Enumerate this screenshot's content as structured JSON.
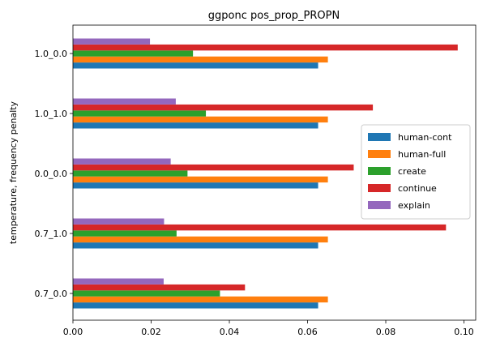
{
  "chart_data": {
    "type": "bar",
    "orientation": "horizontal",
    "title": "ggponc pos_prop_PROPN",
    "xlabel": "",
    "ylabel": "temperature, frequency penalty",
    "xlim": [
      0,
      0.103
    ],
    "x_ticks": [
      "0.00",
      "0.02",
      "0.04",
      "0.06",
      "0.08",
      "0.10"
    ],
    "x_tick_values": [
      0,
      0.02,
      0.04,
      0.06,
      0.08,
      0.1
    ],
    "categories": [
      "0.7_0.0",
      "0.7_1.0",
      "0.0_0.0",
      "1.0_1.0",
      "1.0_0.0"
    ],
    "grid": false,
    "legend_position": "center-right",
    "series": [
      {
        "name": "human-cont",
        "color": "#1f77b4",
        "values": [
          0.0627,
          0.0627,
          0.0627,
          0.0627,
          0.0627
        ]
      },
      {
        "name": "human-full",
        "color": "#ff7f0e",
        "values": [
          0.0652,
          0.0652,
          0.0652,
          0.0652,
          0.0652
        ]
      },
      {
        "name": "create",
        "color": "#2ca02c",
        "values": [
          0.0376,
          0.0265,
          0.0293,
          0.034,
          0.0307
        ]
      },
      {
        "name": "continue",
        "color": "#d62728",
        "values": [
          0.044,
          0.0954,
          0.0718,
          0.0767,
          0.0984
        ]
      },
      {
        "name": "explain",
        "color": "#9467bd",
        "values": [
          0.0232,
          0.0233,
          0.025,
          0.0263,
          0.0197
        ]
      }
    ]
  }
}
